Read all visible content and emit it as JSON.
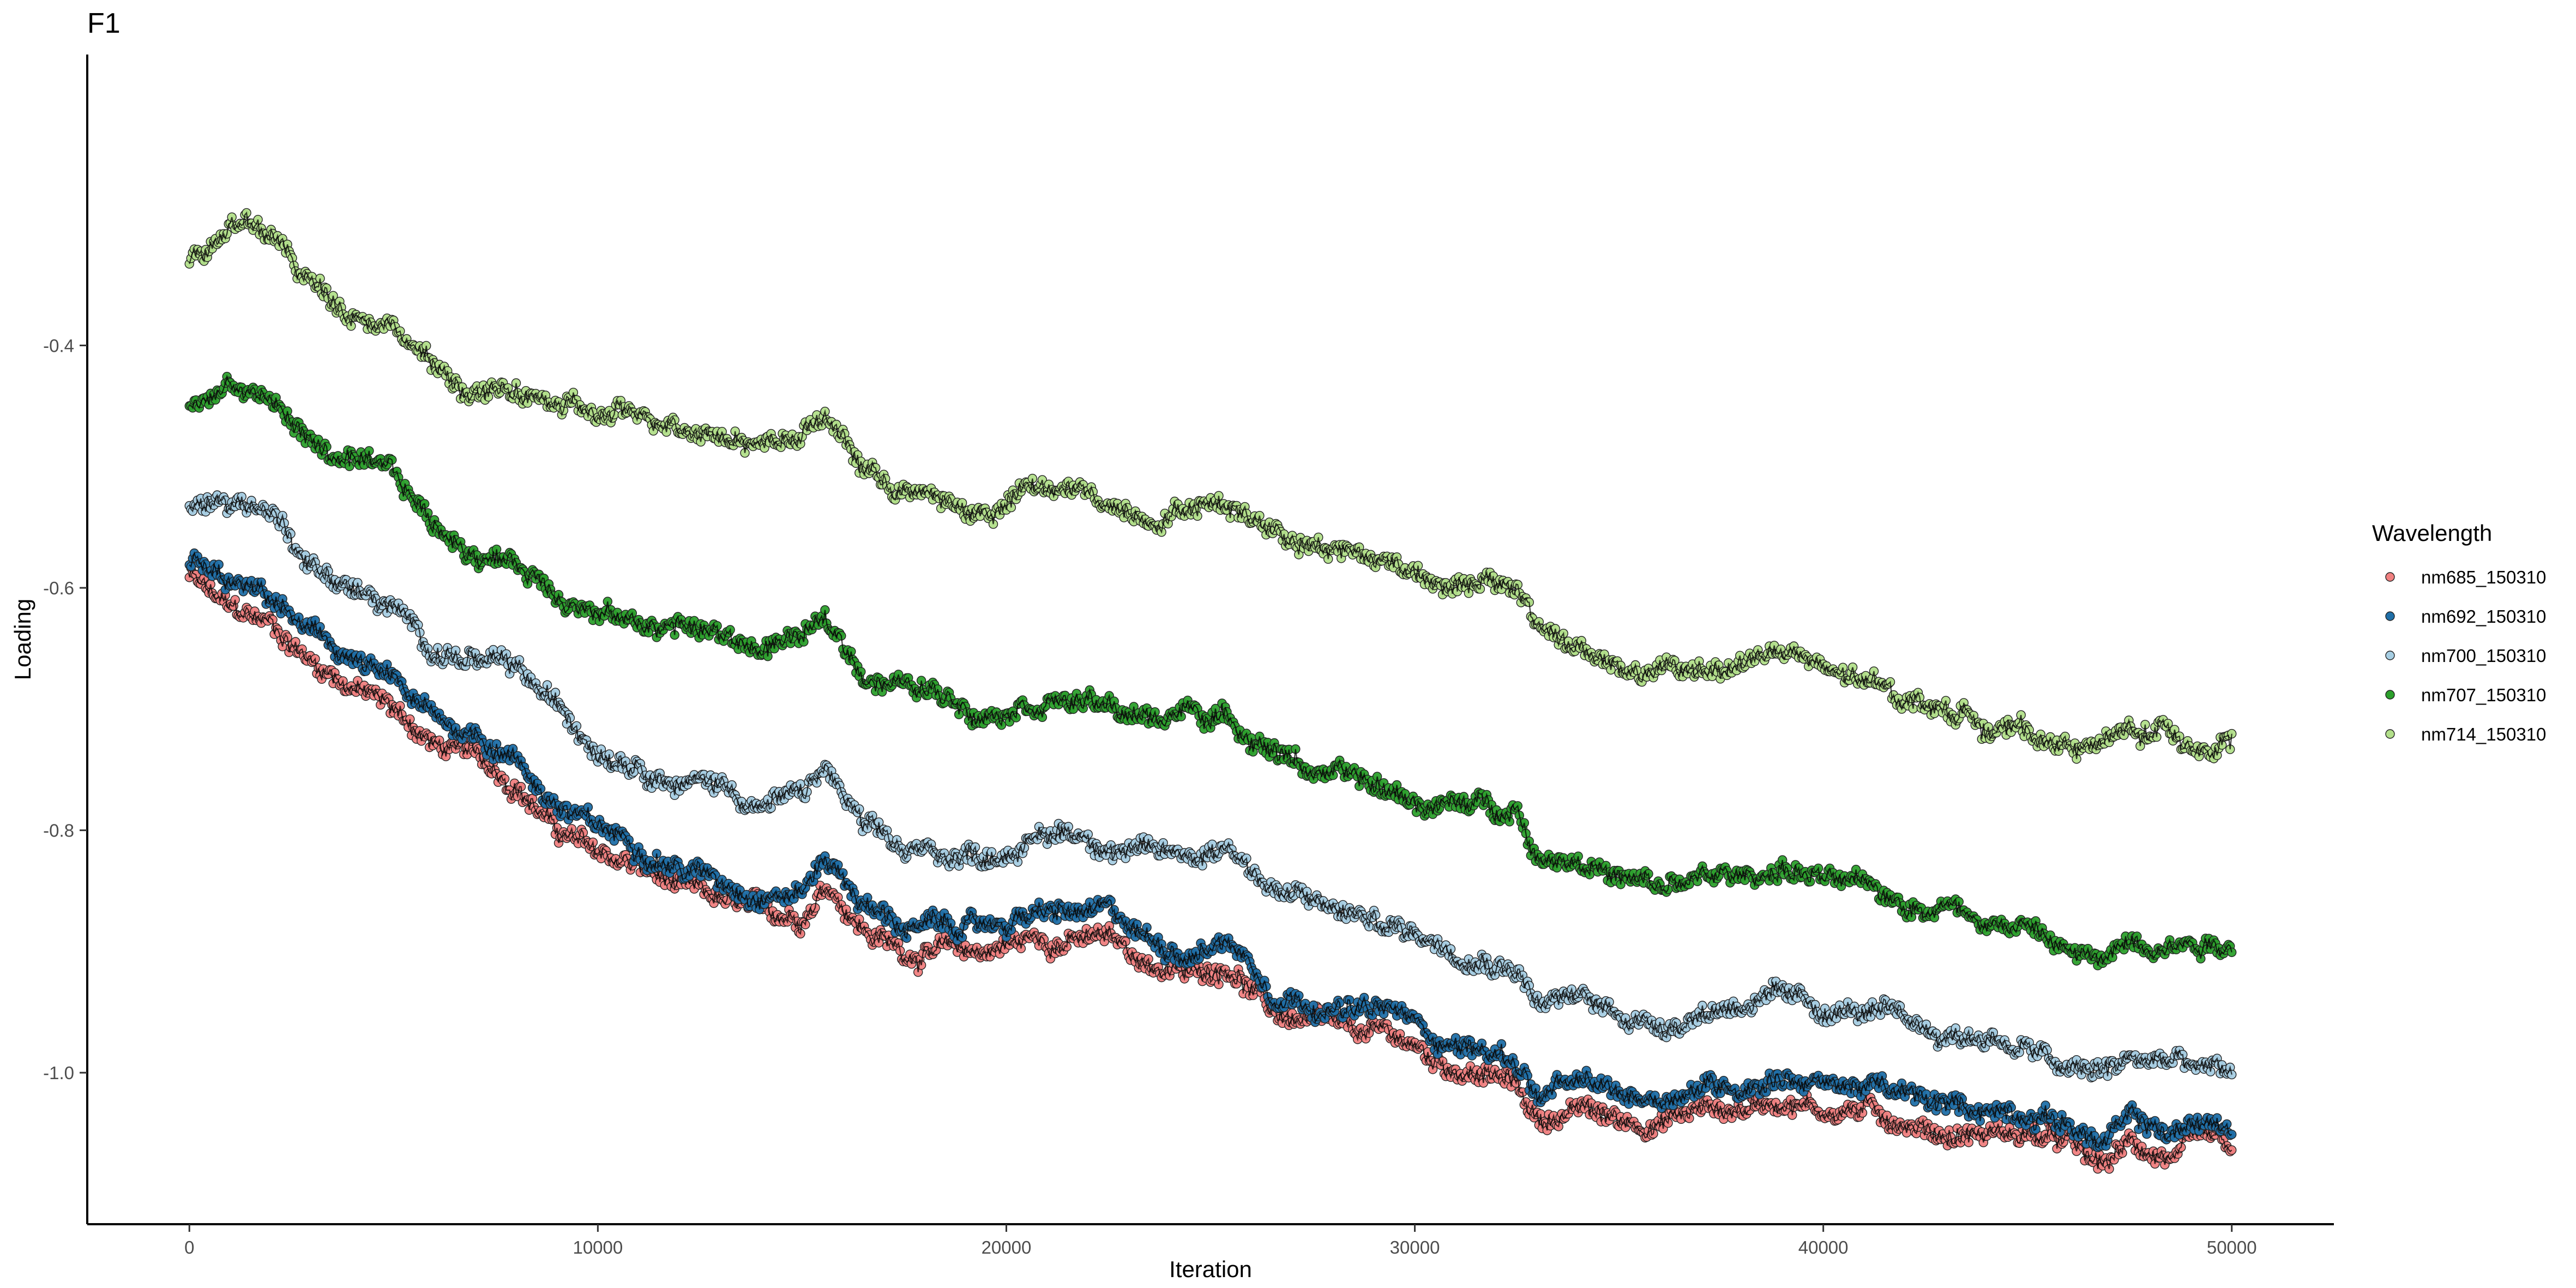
{
  "chart_data": {
    "type": "scatter",
    "title": "F1",
    "xlabel": "Iteration",
    "ylabel": "Loading",
    "xlim": [
      -2500,
      52500
    ],
    "ylim": [
      -1.125,
      -0.16
    ],
    "x_ticks": [
      0,
      10000,
      20000,
      30000,
      40000,
      50000
    ],
    "x_tick_labels": [
      "0",
      "10000",
      "20000",
      "30000",
      "40000",
      "50000"
    ],
    "y_ticks": [
      -0.4,
      -0.6,
      -0.8,
      -1.0
    ],
    "y_tick_labels": [
      "-0.4",
      "-0.6",
      "-0.8",
      "-1.0"
    ],
    "grid": false,
    "legend": {
      "title": "Wavelength",
      "position": "right"
    },
    "series": [
      {
        "name": "nm685_150310",
        "color": "#F08080",
        "x": [
          0,
          1000,
          2000,
          3000,
          4000,
          5000,
          6000,
          7000,
          8000,
          9000,
          10000,
          11000,
          12000,
          13000,
          14000,
          15000,
          15600,
          16500,
          17500,
          18500,
          19500,
          20500,
          21500,
          22500,
          23500,
          24500,
          25500,
          26500,
          27500,
          28500,
          29500,
          30500,
          31500,
          32500,
          33000,
          34000,
          35000,
          36000,
          37000,
          38000,
          39000,
          40000,
          41000,
          42000,
          43000,
          44000,
          45000,
          46000,
          46800,
          47500,
          48500,
          49500,
          50000
        ],
        "values": [
          -0.59,
          -0.62,
          -0.63,
          -0.66,
          -0.68,
          -0.7,
          -0.73,
          -0.74,
          -0.76,
          -0.8,
          -0.82,
          -0.83,
          -0.85,
          -0.86,
          -0.87,
          -0.87,
          -0.84,
          -0.88,
          -0.9,
          -0.9,
          -0.9,
          -0.89,
          -0.89,
          -0.89,
          -0.91,
          -0.92,
          -0.91,
          -0.95,
          -0.96,
          -0.97,
          -0.97,
          -0.99,
          -1.0,
          -1.01,
          -1.04,
          -1.03,
          -1.04,
          -1.04,
          -1.03,
          -1.03,
          -1.02,
          -1.03,
          -1.03,
          -1.04,
          -1.05,
          -1.05,
          -1.05,
          -1.06,
          -1.08,
          -1.06,
          -1.07,
          -1.06,
          -1.07
        ]
      },
      {
        "name": "nm692_150310",
        "color": "#1F6FA8",
        "x": [
          0,
          1000,
          2000,
          3000,
          4000,
          5000,
          6000,
          7000,
          8000,
          9000,
          10000,
          11000,
          12000,
          13000,
          14000,
          15000,
          15600,
          16500,
          17500,
          18500,
          19500,
          20500,
          21500,
          22500,
          23500,
          24500,
          25500,
          26500,
          27500,
          28500,
          29500,
          30500,
          31500,
          32500,
          33000,
          34000,
          35000,
          36000,
          37000,
          38000,
          39000,
          40000,
          41000,
          42000,
          43000,
          44000,
          45000,
          46000,
          46800,
          47500,
          48500,
          49500,
          50000
        ],
        "values": [
          -0.58,
          -0.6,
          -0.61,
          -0.64,
          -0.66,
          -0.68,
          -0.71,
          -0.72,
          -0.74,
          -0.78,
          -0.8,
          -0.81,
          -0.83,
          -0.84,
          -0.85,
          -0.85,
          -0.82,
          -0.86,
          -0.88,
          -0.88,
          -0.88,
          -0.87,
          -0.87,
          -0.87,
          -0.89,
          -0.9,
          -0.89,
          -0.93,
          -0.94,
          -0.95,
          -0.95,
          -0.97,
          -0.98,
          -0.99,
          -1.02,
          -1.01,
          -1.02,
          -1.02,
          -1.01,
          -1.01,
          -1.0,
          -1.01,
          -1.01,
          -1.02,
          -1.03,
          -1.03,
          -1.03,
          -1.04,
          -1.06,
          -1.04,
          -1.05,
          -1.04,
          -1.05
        ]
      },
      {
        "name": "nm700_150310",
        "color": "#A6CEE3",
        "x": [
          0,
          1000,
          2000,
          3000,
          4000,
          5000,
          6000,
          7000,
          8000,
          9000,
          10000,
          11000,
          12000,
          13000,
          14000,
          15000,
          15600,
          16500,
          17500,
          18500,
          19500,
          20500,
          21500,
          22500,
          23500,
          24500,
          25500,
          26500,
          27500,
          28500,
          29500,
          30500,
          31500,
          32500,
          33000,
          34000,
          35000,
          36000,
          37000,
          38000,
          39000,
          40000,
          41000,
          42000,
          43000,
          44000,
          45000,
          46000,
          46800,
          47500,
          48500,
          49500,
          50000
        ],
        "values": [
          -0.535,
          -0.525,
          -0.535,
          -0.58,
          -0.6,
          -0.62,
          -0.65,
          -0.66,
          -0.67,
          -0.7,
          -0.73,
          -0.74,
          -0.76,
          -0.76,
          -0.78,
          -0.77,
          -0.75,
          -0.8,
          -0.82,
          -0.82,
          -0.82,
          -0.81,
          -0.8,
          -0.81,
          -0.82,
          -0.82,
          -0.81,
          -0.85,
          -0.86,
          -0.87,
          -0.88,
          -0.89,
          -0.9,
          -0.91,
          -0.94,
          -0.94,
          -0.95,
          -0.96,
          -0.95,
          -0.94,
          -0.94,
          -0.95,
          -0.95,
          -0.96,
          -0.97,
          -0.97,
          -0.98,
          -1.0,
          -1.0,
          -0.99,
          -0.99,
          -1.0,
          -1.0
        ]
      },
      {
        "name": "nm707_150310",
        "color": "#2CA02C",
        "x": [
          0,
          1000,
          2000,
          3000,
          4000,
          5000,
          6000,
          7000,
          8000,
          9000,
          10000,
          11000,
          12000,
          13000,
          14000,
          15000,
          15600,
          16500,
          17500,
          18500,
          19500,
          20500,
          21500,
          22500,
          23500,
          24500,
          25500,
          26500,
          27500,
          28500,
          29500,
          30500,
          31500,
          32500,
          33000,
          34000,
          35000,
          36000,
          37000,
          38000,
          39000,
          40000,
          41000,
          42000,
          43000,
          44000,
          45000,
          46000,
          46800,
          47500,
          48500,
          49500,
          50000
        ],
        "values": [
          -0.455,
          -0.43,
          -0.445,
          -0.48,
          -0.5,
          -0.51,
          -0.55,
          -0.57,
          -0.58,
          -0.6,
          -0.62,
          -0.63,
          -0.63,
          -0.64,
          -0.65,
          -0.64,
          -0.63,
          -0.67,
          -0.68,
          -0.69,
          -0.7,
          -0.69,
          -0.69,
          -0.7,
          -0.71,
          -0.7,
          -0.71,
          -0.73,
          -0.75,
          -0.76,
          -0.77,
          -0.78,
          -0.78,
          -0.78,
          -0.82,
          -0.82,
          -0.84,
          -0.85,
          -0.84,
          -0.84,
          -0.83,
          -0.84,
          -0.85,
          -0.86,
          -0.86,
          -0.87,
          -0.88,
          -0.9,
          -0.91,
          -0.89,
          -0.89,
          -0.89,
          -0.89
        ]
      },
      {
        "name": "nm714_150310",
        "color": "#B2DF8A",
        "x": [
          0,
          1000,
          2000,
          3000,
          4000,
          5000,
          6000,
          7000,
          8000,
          9000,
          10000,
          11000,
          12000,
          13000,
          14000,
          15000,
          15600,
          16500,
          17500,
          18500,
          19500,
          20500,
          21500,
          22500,
          23500,
          24500,
          25500,
          26500,
          27500,
          28500,
          29500,
          30500,
          31500,
          32500,
          33000,
          34000,
          35000,
          36000,
          37000,
          38000,
          39000,
          40000,
          41000,
          42000,
          43000,
          44000,
          45000,
          46000,
          46800,
          47500,
          48500,
          49500,
          50000
        ],
        "values": [
          -0.33,
          -0.3,
          -0.31,
          -0.35,
          -0.37,
          -0.38,
          -0.42,
          -0.44,
          -0.44,
          -0.45,
          -0.46,
          -0.46,
          -0.46,
          -0.47,
          -0.48,
          -0.47,
          -0.46,
          -0.5,
          -0.52,
          -0.53,
          -0.54,
          -0.52,
          -0.52,
          -0.53,
          -0.54,
          -0.53,
          -0.53,
          -0.55,
          -0.56,
          -0.57,
          -0.58,
          -0.59,
          -0.6,
          -0.6,
          -0.63,
          -0.65,
          -0.67,
          -0.67,
          -0.67,
          -0.66,
          -0.65,
          -0.67,
          -0.68,
          -0.69,
          -0.7,
          -0.71,
          -0.72,
          -0.73,
          -0.73,
          -0.72,
          -0.72,
          -0.73,
          -0.72
        ]
      }
    ]
  }
}
